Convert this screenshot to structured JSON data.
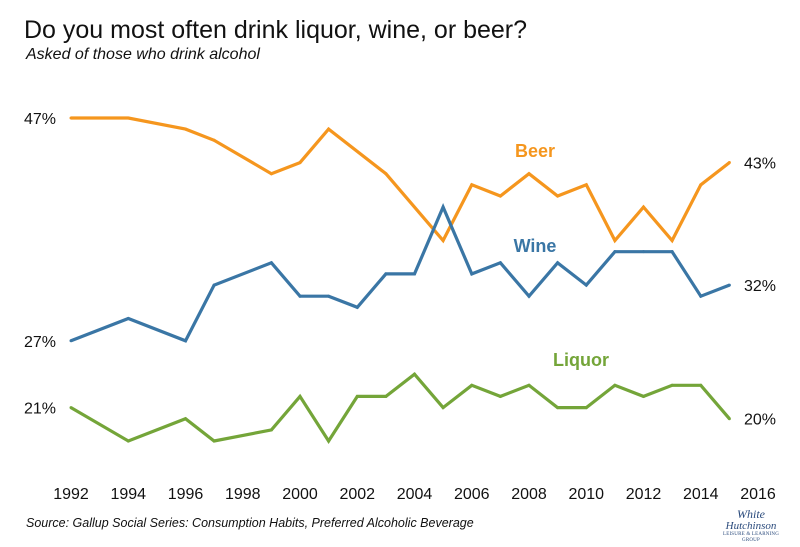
{
  "title": "Do you most often drink liquor, wine, or beer?",
  "subtitle": "Asked of those who drink alcohol",
  "source": "Source: Gallup Social Series: Consumption Habits, Preferred Alcoholic Beverage",
  "logo": {
    "line1": "White",
    "line2": "Hutchinson",
    "line3": "LEISURE & LEARNING GROUP"
  },
  "chart_data": {
    "type": "line",
    "title": "Do you most often drink liquor, wine, or beer?",
    "subtitle": "Asked of those who drink alcohol",
    "x_ticks": [
      1992,
      1994,
      1996,
      1998,
      2000,
      2002,
      2004,
      2006,
      2008,
      2010,
      2012,
      2014,
      2016
    ],
    "x_range": [
      1992,
      2016
    ],
    "y_range": [
      18,
      48
    ],
    "grid": false,
    "series": [
      {
        "name": "Beer",
        "color": "#f5961e",
        "x": [
          1992,
          1994,
          1996,
          1997,
          1999,
          2000,
          2001,
          2003,
          2005,
          2006,
          2007,
          2008,
          2009,
          2010,
          2011,
          2012,
          2013,
          2014,
          2015
        ],
        "y": [
          47,
          47,
          46,
          45,
          42,
          43,
          46,
          42,
          36,
          41,
          40,
          42,
          40,
          41,
          36,
          39,
          36,
          41,
          43
        ],
        "start_label": "47%",
        "end_label": "43%"
      },
      {
        "name": "Wine",
        "color": "#3a76a5",
        "x": [
          1992,
          1994,
          1996,
          1997,
          1999,
          2000,
          2001,
          2002,
          2003,
          2004,
          2005,
          2006,
          2007,
          2008,
          2009,
          2010,
          2011,
          2012,
          2013,
          2014,
          2015
        ],
        "y": [
          27,
          29,
          27,
          32,
          34,
          31,
          31,
          30,
          33,
          33,
          39,
          33,
          34,
          31,
          34,
          32,
          35,
          35,
          35,
          31,
          32
        ],
        "start_label": "27%",
        "end_label": "32%"
      },
      {
        "name": "Liquor",
        "color": "#74a539",
        "x": [
          1992,
          1994,
          1996,
          1997,
          1999,
          2000,
          2001,
          2002,
          2003,
          2004,
          2005,
          2006,
          2007,
          2008,
          2009,
          2010,
          2011,
          2012,
          2013,
          2014,
          2015
        ],
        "y": [
          21,
          18,
          20,
          18,
          19,
          22,
          18,
          22,
          22,
          24,
          21,
          23,
          22,
          23,
          21,
          21,
          23,
          22,
          23,
          23,
          20
        ],
        "start_label": "21%",
        "end_label": "20%"
      }
    ]
  }
}
